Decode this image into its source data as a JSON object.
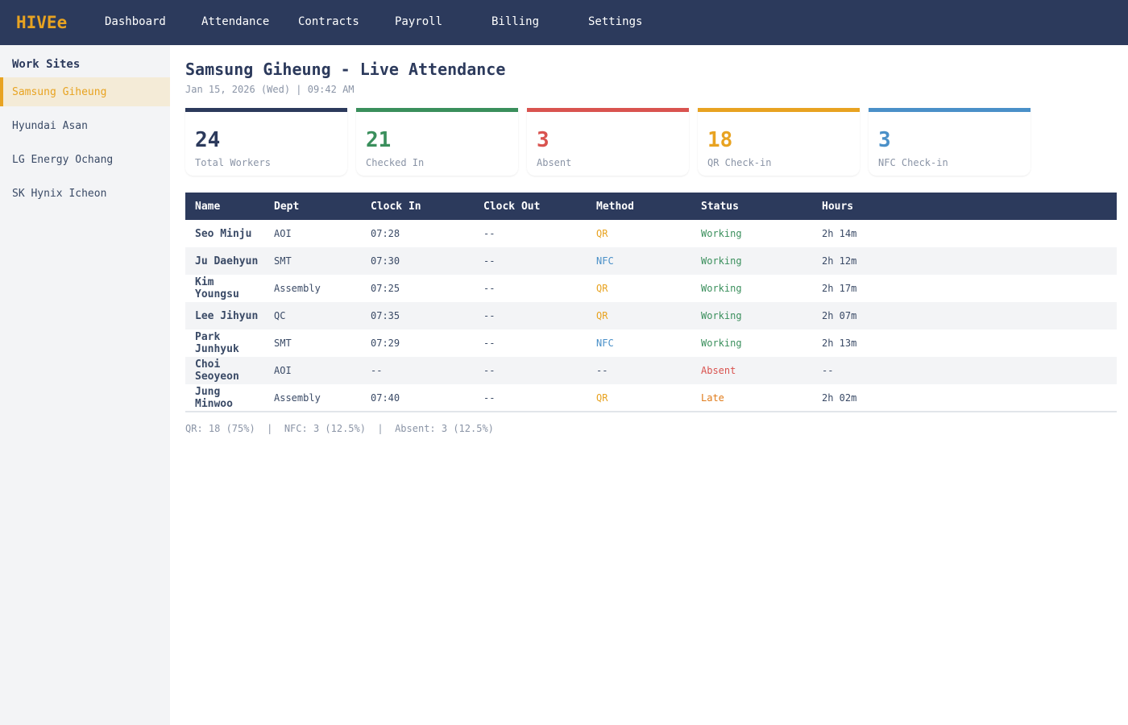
{
  "app": {
    "logo": "HIVEe",
    "nav": [
      "Dashboard",
      "Attendance",
      "Contracts",
      "Payroll",
      "Billing",
      "Settings"
    ]
  },
  "sidebar": {
    "title": "Work Sites",
    "items": [
      "Samsung Giheung",
      "Hyundai Asan",
      "LG Energy Ochang",
      "SK Hynix Icheon"
    ],
    "active": 0
  },
  "page": {
    "title": "Samsung Giheung - Live Attendance",
    "subtitle": "Jan 15, 2026 (Wed) | 09:42 AM"
  },
  "stats": [
    {
      "value": "24",
      "label": "Total Workers",
      "color": "#2c3a5c"
    },
    {
      "value": "21",
      "label": "Checked In",
      "color": "#3a8f5c"
    },
    {
      "value": "3",
      "label": "Absent",
      "color": "#d9534f"
    },
    {
      "value": "18",
      "label": "QR Check-in",
      "color": "#e8a321"
    },
    {
      "value": "3",
      "label": "NFC Check-in",
      "color": "#4a90c8"
    }
  ],
  "table": {
    "headers": [
      "Name",
      "Dept",
      "Clock In",
      "Clock Out",
      "Method",
      "Status",
      "Hours"
    ],
    "rows": [
      [
        "Seo Minju",
        "AOI",
        "07:28",
        "--",
        "QR",
        "Working",
        "2h 14m"
      ],
      [
        "Ju Daehyun",
        "SMT",
        "07:30",
        "--",
        "NFC",
        "Working",
        "2h 12m"
      ],
      [
        "Kim Youngsu",
        "Assembly",
        "07:25",
        "--",
        "QR",
        "Working",
        "2h 17m"
      ],
      [
        "Lee Jihyun",
        "QC",
        "07:35",
        "--",
        "QR",
        "Working",
        "2h 07m"
      ],
      [
        "Park Junhyuk",
        "SMT",
        "07:29",
        "--",
        "NFC",
        "Working",
        "2h 13m"
      ],
      [
        "Choi Seoyeon",
        "AOI",
        "--",
        "--",
        "--",
        "Absent",
        "--"
      ],
      [
        "Jung Minwoo",
        "Assembly",
        "07:40",
        "--",
        "QR",
        "Late",
        "2h 02m"
      ]
    ]
  },
  "footer": "QR: 18 (75%)  |  NFC: 3 (12.5%)  |  Absent: 3 (12.5%)",
  "colors": {
    "QR": "#e8a321",
    "NFC": "#4a90c8",
    "--": "#3a4a66",
    "Working": "#3a8f5c",
    "Absent": "#d9534f",
    "Late": "#e07b1a"
  }
}
